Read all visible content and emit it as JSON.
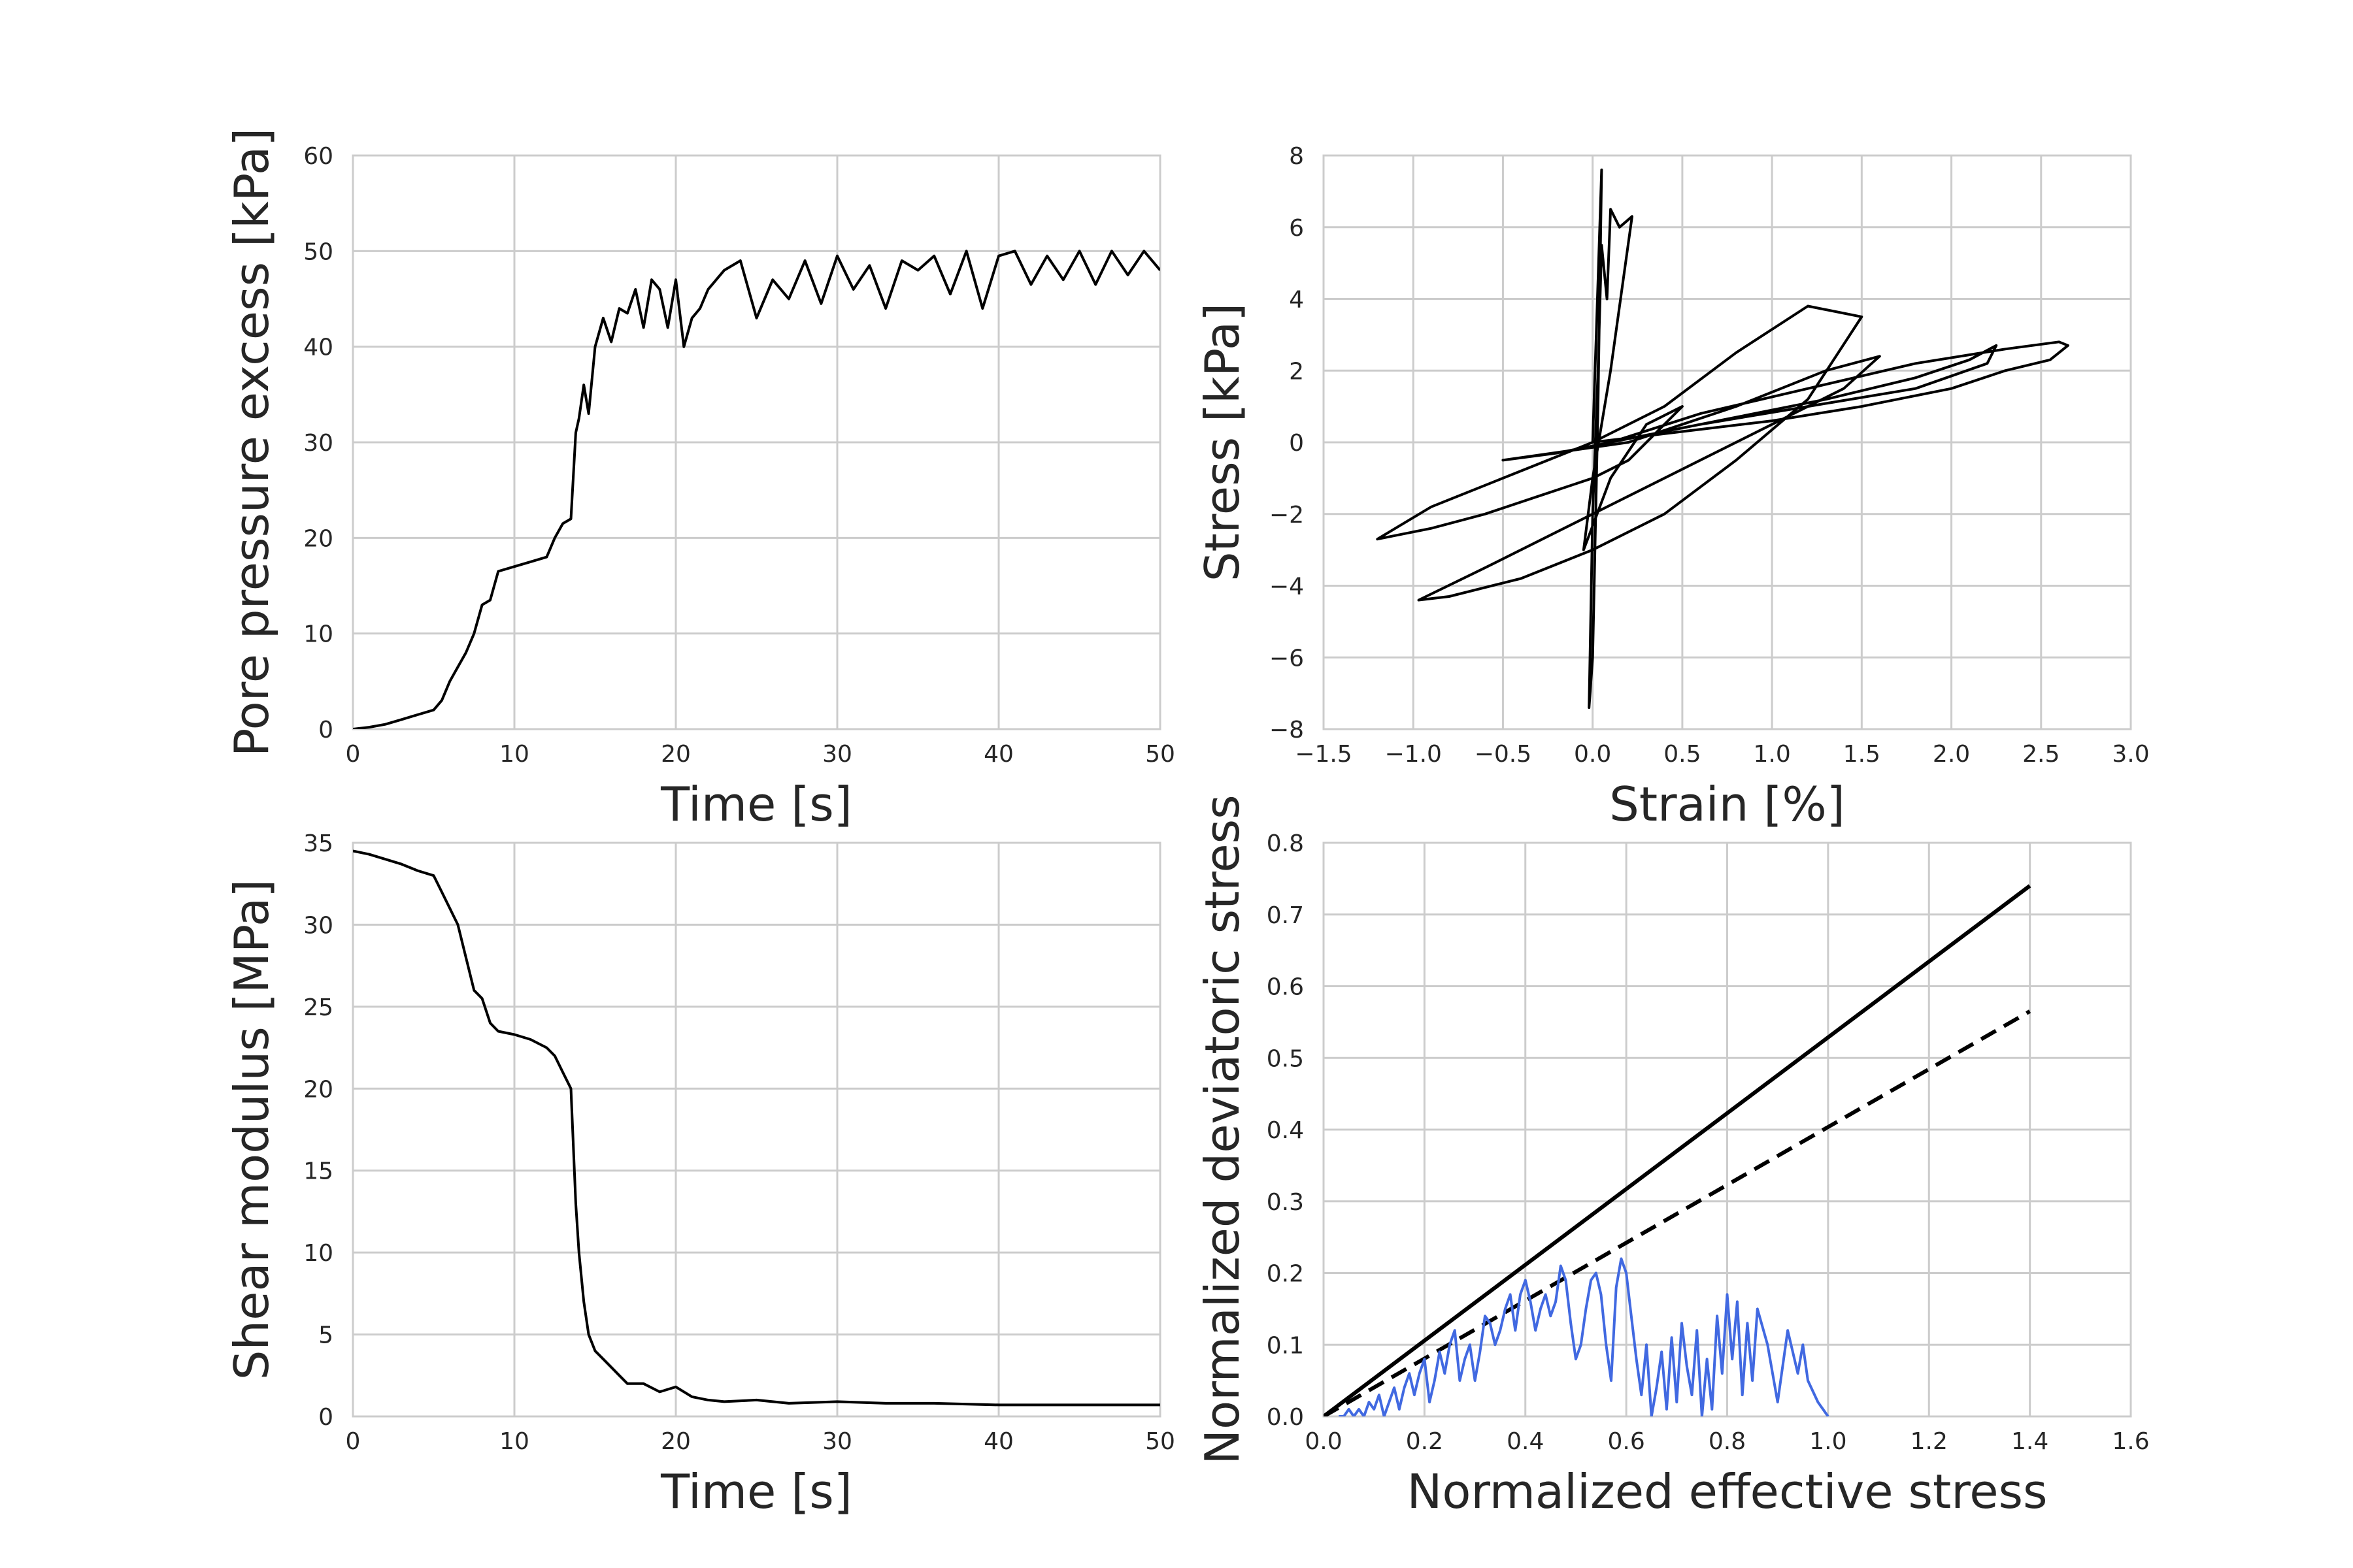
{
  "chart_data": [
    {
      "type": "line",
      "xlabel": "Time [s]",
      "ylabel": "Pore pressure excess [kPa]",
      "xlim": [
        0,
        50
      ],
      "ylim": [
        0,
        60
      ],
      "xticks": [
        "0",
        "10",
        "20",
        "30",
        "40",
        "50"
      ],
      "yticks": [
        "0",
        "10",
        "20",
        "30",
        "40",
        "50",
        "60"
      ],
      "grid": true,
      "series": [
        {
          "color": "#000000",
          "x": [
            0,
            1,
            2,
            3,
            4,
            5,
            5.5,
            6,
            6.5,
            7,
            7.5,
            8,
            8.5,
            9,
            10,
            11,
            12,
            12.5,
            13,
            13.5,
            13.8,
            14,
            14.3,
            14.6,
            15,
            15.5,
            16,
            16.5,
            17,
            17.5,
            18,
            18.5,
            19,
            19.5,
            20,
            20.5,
            21,
            21.5,
            22,
            23,
            24,
            25,
            26,
            27,
            28,
            29,
            30,
            31,
            32,
            33,
            34,
            35,
            36,
            37,
            38,
            39,
            40,
            41,
            42,
            43,
            44,
            45,
            46,
            47,
            48,
            49,
            50
          ],
          "y": [
            0,
            0.2,
            0.5,
            1,
            1.5,
            2,
            3,
            5,
            6.5,
            8,
            10,
            13,
            13.5,
            16.5,
            17,
            17.5,
            18,
            20,
            21.5,
            22,
            31,
            32.5,
            36,
            33,
            40,
            43,
            40.5,
            44,
            43.5,
            46,
            42,
            47,
            46,
            42,
            47,
            40,
            43,
            44,
            46,
            48,
            49,
            43,
            47,
            45,
            49,
            44.5,
            49.5,
            46,
            48.5,
            44,
            49,
            48,
            49.5,
            45.5,
            50,
            44,
            49.5,
            50,
            46.5,
            49.5,
            47,
            50,
            46.5,
            50,
            47.5,
            50,
            48
          ]
        }
      ]
    },
    {
      "type": "line",
      "xlabel": "Strain [%]",
      "ylabel": "Stress [kPa]",
      "xlim": [
        -1.5,
        3.0
      ],
      "ylim": [
        -8,
        8
      ],
      "xticks": [
        "−1.5",
        "−1.0",
        "−0.5",
        "0.0",
        "0.5",
        "1.0",
        "1.5",
        "2.0",
        "2.5",
        "3.0"
      ],
      "yticks": [
        "−8",
        "−6",
        "−4",
        "−2",
        "0",
        "2",
        "4",
        "6",
        "8"
      ],
      "grid": true,
      "series": [
        {
          "color": "#000000",
          "x": [
            0,
            0.02,
            0.05,
            0.03,
            0.0,
            -0.02,
            0.0,
            0.03,
            0.05,
            0.08,
            0.1,
            0.15,
            0.22,
            0.1,
            0.0,
            -0.05,
            0.1,
            0.3,
            0.5,
            0.2,
            0.0,
            -0.3,
            -0.6,
            -0.9,
            -1.2,
            -0.9,
            -0.5,
            0.0,
            0.4,
            0.8,
            1.2,
            1.5,
            1.2,
            0.8,
            0.4,
            0.0,
            -0.4,
            -0.8,
            -0.97,
            -0.6,
            -0.2,
            0.2,
            0.6,
            1.0,
            1.4,
            1.6,
            1.3,
            0.8,
            0.2,
            -0.5,
            -0.2,
            0.3,
            0.8,
            1.3,
            1.8,
            2.1,
            2.25,
            2.2,
            1.8,
            1.2,
            0.6,
            0.1,
            0.6,
            1.2,
            1.8,
            2.3,
            2.6,
            2.65,
            2.55,
            2.3,
            2.0,
            1.5,
            1.0,
            0.5,
            0.0
          ],
          "y": [
            0,
            3,
            7.6,
            1,
            -6,
            -7.4,
            -2,
            2,
            5.5,
            4,
            6.5,
            6,
            6.3,
            2,
            -1,
            -3,
            -1,
            0.5,
            1,
            -0.5,
            -1,
            -1.5,
            -2,
            -2.4,
            -2.7,
            -1.8,
            -1,
            0,
            1,
            2.5,
            3.8,
            3.5,
            1.2,
            -0.5,
            -2,
            -3,
            -3.8,
            -4.3,
            -4.4,
            -3.5,
            -2.5,
            -1.5,
            -0.5,
            0.5,
            1.5,
            2.4,
            2,
            1,
            0,
            -0.5,
            -0.3,
            0.2,
            0.7,
            1.2,
            1.8,
            2.3,
            2.7,
            2.2,
            1.5,
            1,
            0.5,
            0,
            0.8,
            1.5,
            2.2,
            2.6,
            2.8,
            2.7,
            2.3,
            2,
            1.5,
            1,
            0.6,
            0.3,
            0
          ]
        }
      ]
    },
    {
      "type": "line",
      "xlabel": "Time [s]",
      "ylabel": "Shear modulus [MPa]",
      "xlim": [
        0,
        50
      ],
      "ylim": [
        0,
        35
      ],
      "xticks": [
        "0",
        "10",
        "20",
        "30",
        "40",
        "50"
      ],
      "yticks": [
        "0",
        "5",
        "10",
        "15",
        "20",
        "25",
        "30",
        "35"
      ],
      "grid": true,
      "series": [
        {
          "color": "#000000",
          "x": [
            0,
            1,
            2,
            3,
            4,
            5,
            5.5,
            6,
            6.5,
            7,
            7.5,
            8,
            8.5,
            9,
            10,
            11,
            12,
            12.5,
            13,
            13.5,
            13.8,
            14,
            14.3,
            14.6,
            15,
            15.5,
            16,
            16.5,
            17,
            18,
            19,
            20,
            21,
            22,
            23,
            25,
            27,
            30,
            33,
            36,
            40,
            45,
            50
          ],
          "y": [
            34.5,
            34.3,
            34,
            33.7,
            33.3,
            33,
            32,
            31,
            30,
            28,
            26,
            25.5,
            24,
            23.5,
            23.3,
            23,
            22.5,
            22,
            21,
            20,
            13,
            10,
            7,
            5,
            4,
            3.5,
            3,
            2.5,
            2,
            2,
            1.5,
            1.8,
            1.2,
            1,
            0.9,
            1,
            0.8,
            0.9,
            0.8,
            0.8,
            0.7,
            0.7,
            0.7
          ]
        }
      ]
    },
    {
      "type": "line",
      "xlabel": "Normalized effective stress",
      "ylabel": "Normalized deviatoric stress",
      "xlim": [
        0.0,
        1.6
      ],
      "ylim": [
        0.0,
        0.8
      ],
      "xticks": [
        "0.0",
        "0.2",
        "0.4",
        "0.6",
        "0.8",
        "1.0",
        "1.2",
        "1.4",
        "1.6"
      ],
      "yticks": [
        "0.0",
        "0.1",
        "0.2",
        "0.3",
        "0.4",
        "0.5",
        "0.6",
        "0.7",
        "0.8"
      ],
      "grid": true,
      "series": [
        {
          "color": "#000000",
          "style": "solid",
          "x": [
            0,
            1.4
          ],
          "y": [
            0,
            0.74
          ]
        },
        {
          "color": "#000000",
          "style": "dashed",
          "x": [
            0,
            1.4
          ],
          "y": [
            0,
            0.565
          ]
        },
        {
          "color": "#4169e1",
          "style": "solid",
          "x": [
            1.0,
            0.98,
            0.96,
            0.95,
            0.94,
            0.92,
            0.9,
            0.88,
            0.86,
            0.85,
            0.84,
            0.83,
            0.82,
            0.81,
            0.8,
            0.79,
            0.78,
            0.77,
            0.76,
            0.75,
            0.74,
            0.73,
            0.72,
            0.71,
            0.7,
            0.69,
            0.68,
            0.67,
            0.66,
            0.65,
            0.64,
            0.63,
            0.62,
            0.61,
            0.6,
            0.59,
            0.58,
            0.57,
            0.56,
            0.55,
            0.54,
            0.53,
            0.52,
            0.51,
            0.5,
            0.49,
            0.48,
            0.47,
            0.46,
            0.45,
            0.44,
            0.43,
            0.42,
            0.41,
            0.4,
            0.39,
            0.38,
            0.37,
            0.36,
            0.35,
            0.34,
            0.33,
            0.32,
            0.31,
            0.3,
            0.29,
            0.28,
            0.27,
            0.26,
            0.25,
            0.24,
            0.23,
            0.22,
            0.21,
            0.2,
            0.19,
            0.18,
            0.17,
            0.16,
            0.15,
            0.14,
            0.13,
            0.12,
            0.11,
            0.1,
            0.09,
            0.08,
            0.07,
            0.06,
            0.05,
            0.04,
            0.03
          ],
          "y": [
            0.0,
            0.02,
            0.05,
            0.1,
            0.06,
            0.12,
            0.02,
            0.1,
            0.15,
            0.05,
            0.13,
            0.03,
            0.16,
            0.08,
            0.17,
            0.06,
            0.14,
            0.01,
            0.08,
            0.0,
            0.12,
            0.03,
            0.07,
            0.13,
            0.02,
            0.11,
            0.01,
            0.09,
            0.04,
            0.0,
            0.1,
            0.03,
            0.08,
            0.14,
            0.2,
            0.22,
            0.18,
            0.05,
            0.1,
            0.17,
            0.2,
            0.19,
            0.15,
            0.1,
            0.08,
            0.13,
            0.19,
            0.21,
            0.16,
            0.14,
            0.17,
            0.15,
            0.12,
            0.16,
            0.19,
            0.17,
            0.12,
            0.17,
            0.15,
            0.12,
            0.1,
            0.13,
            0.14,
            0.09,
            0.05,
            0.1,
            0.08,
            0.05,
            0.12,
            0.1,
            0.06,
            0.09,
            0.05,
            0.02,
            0.08,
            0.06,
            0.03,
            0.06,
            0.04,
            0.01,
            0.04,
            0.02,
            0.0,
            0.03,
            0.01,
            0.02,
            0.0,
            0.01,
            0.0,
            0.01,
            0.0,
            0.0
          ]
        }
      ]
    }
  ]
}
